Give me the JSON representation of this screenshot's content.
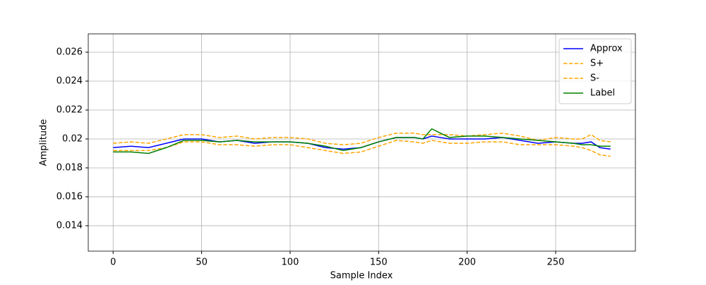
{
  "chart_data": {
    "type": "line",
    "xlabel": "Sample Index",
    "ylabel": "Amplitude",
    "x": [
      0,
      10,
      20,
      30,
      40,
      50,
      60,
      70,
      80,
      90,
      100,
      110,
      120,
      130,
      140,
      150,
      160,
      170,
      175,
      180,
      185,
      190,
      200,
      210,
      220,
      230,
      240,
      250,
      260,
      265,
      270,
      275,
      281
    ],
    "series": [
      {
        "name": "Approx",
        "color": "#0000ff",
        "linestyle": "solid",
        "values": [
          0.0194,
          0.0195,
          0.0194,
          0.0197,
          0.02,
          0.02,
          0.0198,
          0.0199,
          0.0197,
          0.0198,
          0.0198,
          0.0197,
          0.0194,
          0.0193,
          0.0194,
          0.0198,
          0.0201,
          0.0201,
          0.02,
          0.0202,
          0.0201,
          0.02,
          0.02,
          0.02,
          0.0201,
          0.0199,
          0.0197,
          0.0198,
          0.0197,
          0.0197,
          0.0198,
          0.0194,
          0.0193
        ]
      },
      {
        "name": "S+",
        "color": "#ffa500",
        "linestyle": "dashed",
        "values": [
          0.0197,
          0.0198,
          0.0197,
          0.02,
          0.0203,
          0.0203,
          0.0201,
          0.0202,
          0.02,
          0.0201,
          0.0201,
          0.02,
          0.0197,
          0.0196,
          0.0197,
          0.0201,
          0.0204,
          0.0204,
          0.0203,
          0.0203,
          0.0203,
          0.0203,
          0.0202,
          0.0203,
          0.0204,
          0.0202,
          0.0199,
          0.0201,
          0.02,
          0.02,
          0.0203,
          0.0199,
          0.0198
        ]
      },
      {
        "name": "S-",
        "color": "#ffa500",
        "linestyle": "dashed",
        "values": [
          0.0192,
          0.0192,
          0.0192,
          0.0194,
          0.0198,
          0.0198,
          0.0196,
          0.0196,
          0.0195,
          0.0196,
          0.0196,
          0.0194,
          0.0192,
          0.019,
          0.0191,
          0.0195,
          0.0199,
          0.0198,
          0.0197,
          0.0199,
          0.0198,
          0.0197,
          0.0197,
          0.0198,
          0.0198,
          0.0196,
          0.0196,
          0.0196,
          0.0195,
          0.0194,
          0.0192,
          0.0189,
          0.0188
        ]
      },
      {
        "name": "Label",
        "color": "#008000",
        "linestyle": "solid",
        "values": [
          0.0191,
          0.0191,
          0.019,
          0.0194,
          0.0199,
          0.0199,
          0.0198,
          0.0199,
          0.0198,
          0.0198,
          0.0198,
          0.0197,
          0.0195,
          0.0192,
          0.0194,
          0.0198,
          0.0201,
          0.0201,
          0.02,
          0.0207,
          0.0204,
          0.0201,
          0.0202,
          0.0202,
          0.0201,
          0.02,
          0.0199,
          0.0198,
          0.0197,
          0.0196,
          0.0196,
          0.0195,
          0.0195
        ]
      }
    ],
    "xlim": [
      -14.05,
      295.05
    ],
    "xticks": [
      0,
      50,
      100,
      150,
      200,
      250
    ],
    "ylim": [
      0.01224,
      0.02727
    ],
    "yticks": [
      0.014,
      0.016,
      0.018,
      0.02,
      0.022,
      0.024,
      0.026
    ],
    "grid": true,
    "legend": "upper right"
  }
}
